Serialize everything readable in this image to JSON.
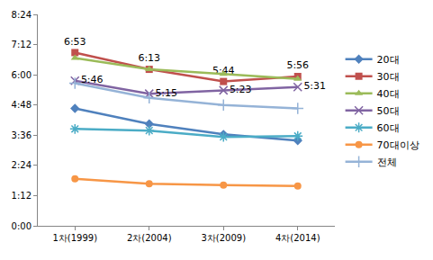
{
  "chart_data": {
    "type": "line",
    "categories": [
      "1차(1999)",
      "2차(2004)",
      "3차(2009)",
      "4차(2014)"
    ],
    "series": [
      {
        "name": "20대",
        "color": "#4F81BD",
        "marker": "diamond",
        "values": [
          280,
          243,
          218,
          203
        ]
      },
      {
        "name": "30대",
        "color": "#C0504D",
        "marker": "square",
        "values": [
          413,
          373,
          344,
          356
        ],
        "value_labels": [
          "6:53",
          "6:13",
          "5:44",
          "5:56"
        ]
      },
      {
        "name": "40대",
        "color": "#9BBB59",
        "marker": "triangle-up",
        "values": [
          400,
          373,
          362,
          350
        ]
      },
      {
        "name": "50대",
        "color": "#8064A2",
        "marker": "x",
        "values": [
          346,
          315,
          323,
          331
        ],
        "value_labels": [
          "5:46",
          "5:15",
          "5:23",
          "5:31"
        ]
      },
      {
        "name": "60대",
        "color": "#4BACC6",
        "marker": "asterisk",
        "values": [
          231,
          227,
          212,
          214
        ]
      },
      {
        "name": "70대이상",
        "color": "#F79646",
        "marker": "circle",
        "values": [
          112,
          100,
          97,
          95
        ]
      },
      {
        "name": "전체",
        "color": "#95B3D7",
        "marker": "cross",
        "values": [
          340,
          305,
          288,
          280
        ]
      }
    ],
    "ylim": [
      0,
      504
    ],
    "yticks": [
      {
        "value": 0,
        "label": "0:00"
      },
      {
        "value": 72,
        "label": "1:12"
      },
      {
        "value": 144,
        "label": "2:24"
      },
      {
        "value": 216,
        "label": "3:36"
      },
      {
        "value": 288,
        "label": "4:48"
      },
      {
        "value": 360,
        "label": "6:00"
      },
      {
        "value": 432,
        "label": "7:12"
      },
      {
        "value": 504,
        "label": "8:24"
      }
    ],
    "grid": false,
    "legend": "right"
  }
}
